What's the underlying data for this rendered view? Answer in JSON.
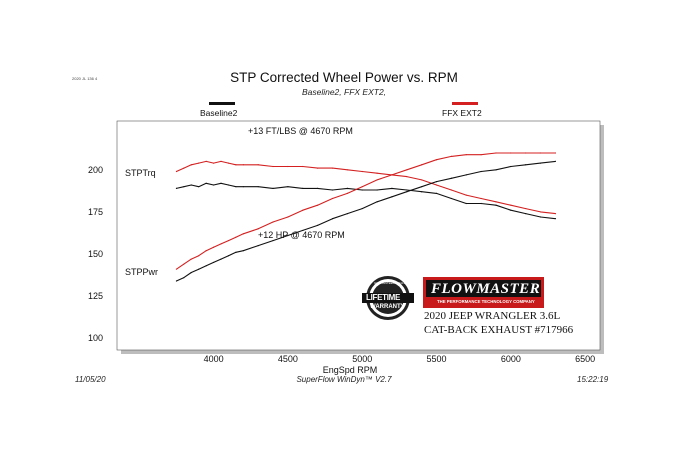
{
  "corner_note": "2020 JL 136 4",
  "footer": {
    "date": "11/05/20",
    "software": "SuperFlow WinDyn™  V2.7",
    "time": "15:22:19"
  },
  "badge": {
    "top": "GUARANTEED QUALITY",
    "main1": "LIFETIME",
    "main2": "WARRANTY"
  },
  "brand": {
    "logo": "FLOWMASTER",
    "tagline": "THE PERFORMANCE TECHNOLOGY COMPANY",
    "line1": "2020 JEEP WRANGLER 3.6L",
    "line2": "CAT-BACK EXHAUST #717966"
  },
  "colors": {
    "baseline": "#111111",
    "ffx": "#d42020"
  },
  "chart_data": {
    "type": "line",
    "title": "STP Corrected Wheel Power vs. RPM",
    "subtitle": "Baseline2, FFX EXT2,",
    "xlabel": "EngSpd  RPM",
    "ylabel": "",
    "xlim": [
      3350,
      6600
    ],
    "ylim": [
      93,
      229
    ],
    "xticks": [
      4000,
      4500,
      5000,
      5500,
      6000,
      6500
    ],
    "yticks": [
      100,
      125,
      150,
      175,
      200
    ],
    "legend_position": "top",
    "legend": [
      "Baseline2",
      "FFX EXT2"
    ],
    "curve_labels": [
      "STPTrq",
      "STPPwr"
    ],
    "annotations": [
      "+13 FT/LBS @ 4670 RPM",
      "+12 HP @ 4670 RPM"
    ],
    "series": [
      {
        "name": "Baseline2",
        "quantity": "STPTrq",
        "x": [
          3750,
          3800,
          3850,
          3900,
          3950,
          4000,
          4050,
          4100,
          4150,
          4200,
          4300,
          4400,
          4500,
          4600,
          4700,
          4800,
          4900,
          5000,
          5100,
          5200,
          5300,
          5400,
          5500,
          5600,
          5700,
          5800,
          5900,
          6000,
          6100,
          6200,
          6300
        ],
        "y": [
          189,
          190,
          191,
          190,
          192,
          191,
          192,
          191,
          190,
          190,
          190,
          189,
          190,
          189,
          189,
          188,
          189,
          188,
          188,
          189,
          188,
          187,
          186,
          183,
          180,
          180,
          179,
          176,
          174,
          172,
          171
        ]
      },
      {
        "name": "FFX EXT2",
        "quantity": "STPTrq",
        "x": [
          3750,
          3800,
          3850,
          3900,
          3950,
          4000,
          4050,
          4100,
          4150,
          4200,
          4300,
          4400,
          4500,
          4600,
          4700,
          4800,
          4900,
          5000,
          5100,
          5200,
          5300,
          5400,
          5500,
          5600,
          5700,
          5800,
          5900,
          6000,
          6100,
          6200,
          6300
        ],
        "y": [
          199,
          201,
          203,
          204,
          205,
          204,
          205,
          204,
          203,
          203,
          203,
          202,
          202,
          202,
          201,
          201,
          200,
          199,
          198,
          197,
          196,
          194,
          191,
          188,
          185,
          183,
          181,
          179,
          177,
          175,
          174
        ]
      },
      {
        "name": "Baseline2",
        "quantity": "STPPwr",
        "x": [
          3750,
          3800,
          3850,
          3900,
          3950,
          4000,
          4050,
          4100,
          4150,
          4200,
          4300,
          4400,
          4500,
          4600,
          4700,
          4800,
          4900,
          5000,
          5100,
          5200,
          5300,
          5400,
          5500,
          5600,
          5700,
          5800,
          5900,
          6000,
          6100,
          6200,
          6300
        ],
        "y": [
          134,
          136,
          139,
          141,
          143,
          145,
          147,
          149,
          151,
          152,
          155,
          158,
          161,
          164,
          167,
          171,
          174,
          177,
          181,
          184,
          187,
          190,
          193,
          195,
          197,
          199,
          200,
          202,
          203,
          204,
          205
        ]
      },
      {
        "name": "FFX EXT2",
        "quantity": "STPPwr",
        "x": [
          3750,
          3800,
          3850,
          3900,
          3950,
          4000,
          4050,
          4100,
          4150,
          4200,
          4300,
          4400,
          4500,
          4600,
          4700,
          4800,
          4900,
          5000,
          5100,
          5200,
          5300,
          5400,
          5500,
          5600,
          5700,
          5800,
          5900,
          6000,
          6100,
          6200,
          6300
        ],
        "y": [
          141,
          144,
          147,
          149,
          152,
          154,
          156,
          158,
          160,
          162,
          165,
          169,
          172,
          176,
          179,
          183,
          186,
          190,
          194,
          197,
          200,
          203,
          206,
          208,
          209,
          209,
          210,
          210,
          210,
          210,
          210
        ]
      }
    ]
  }
}
